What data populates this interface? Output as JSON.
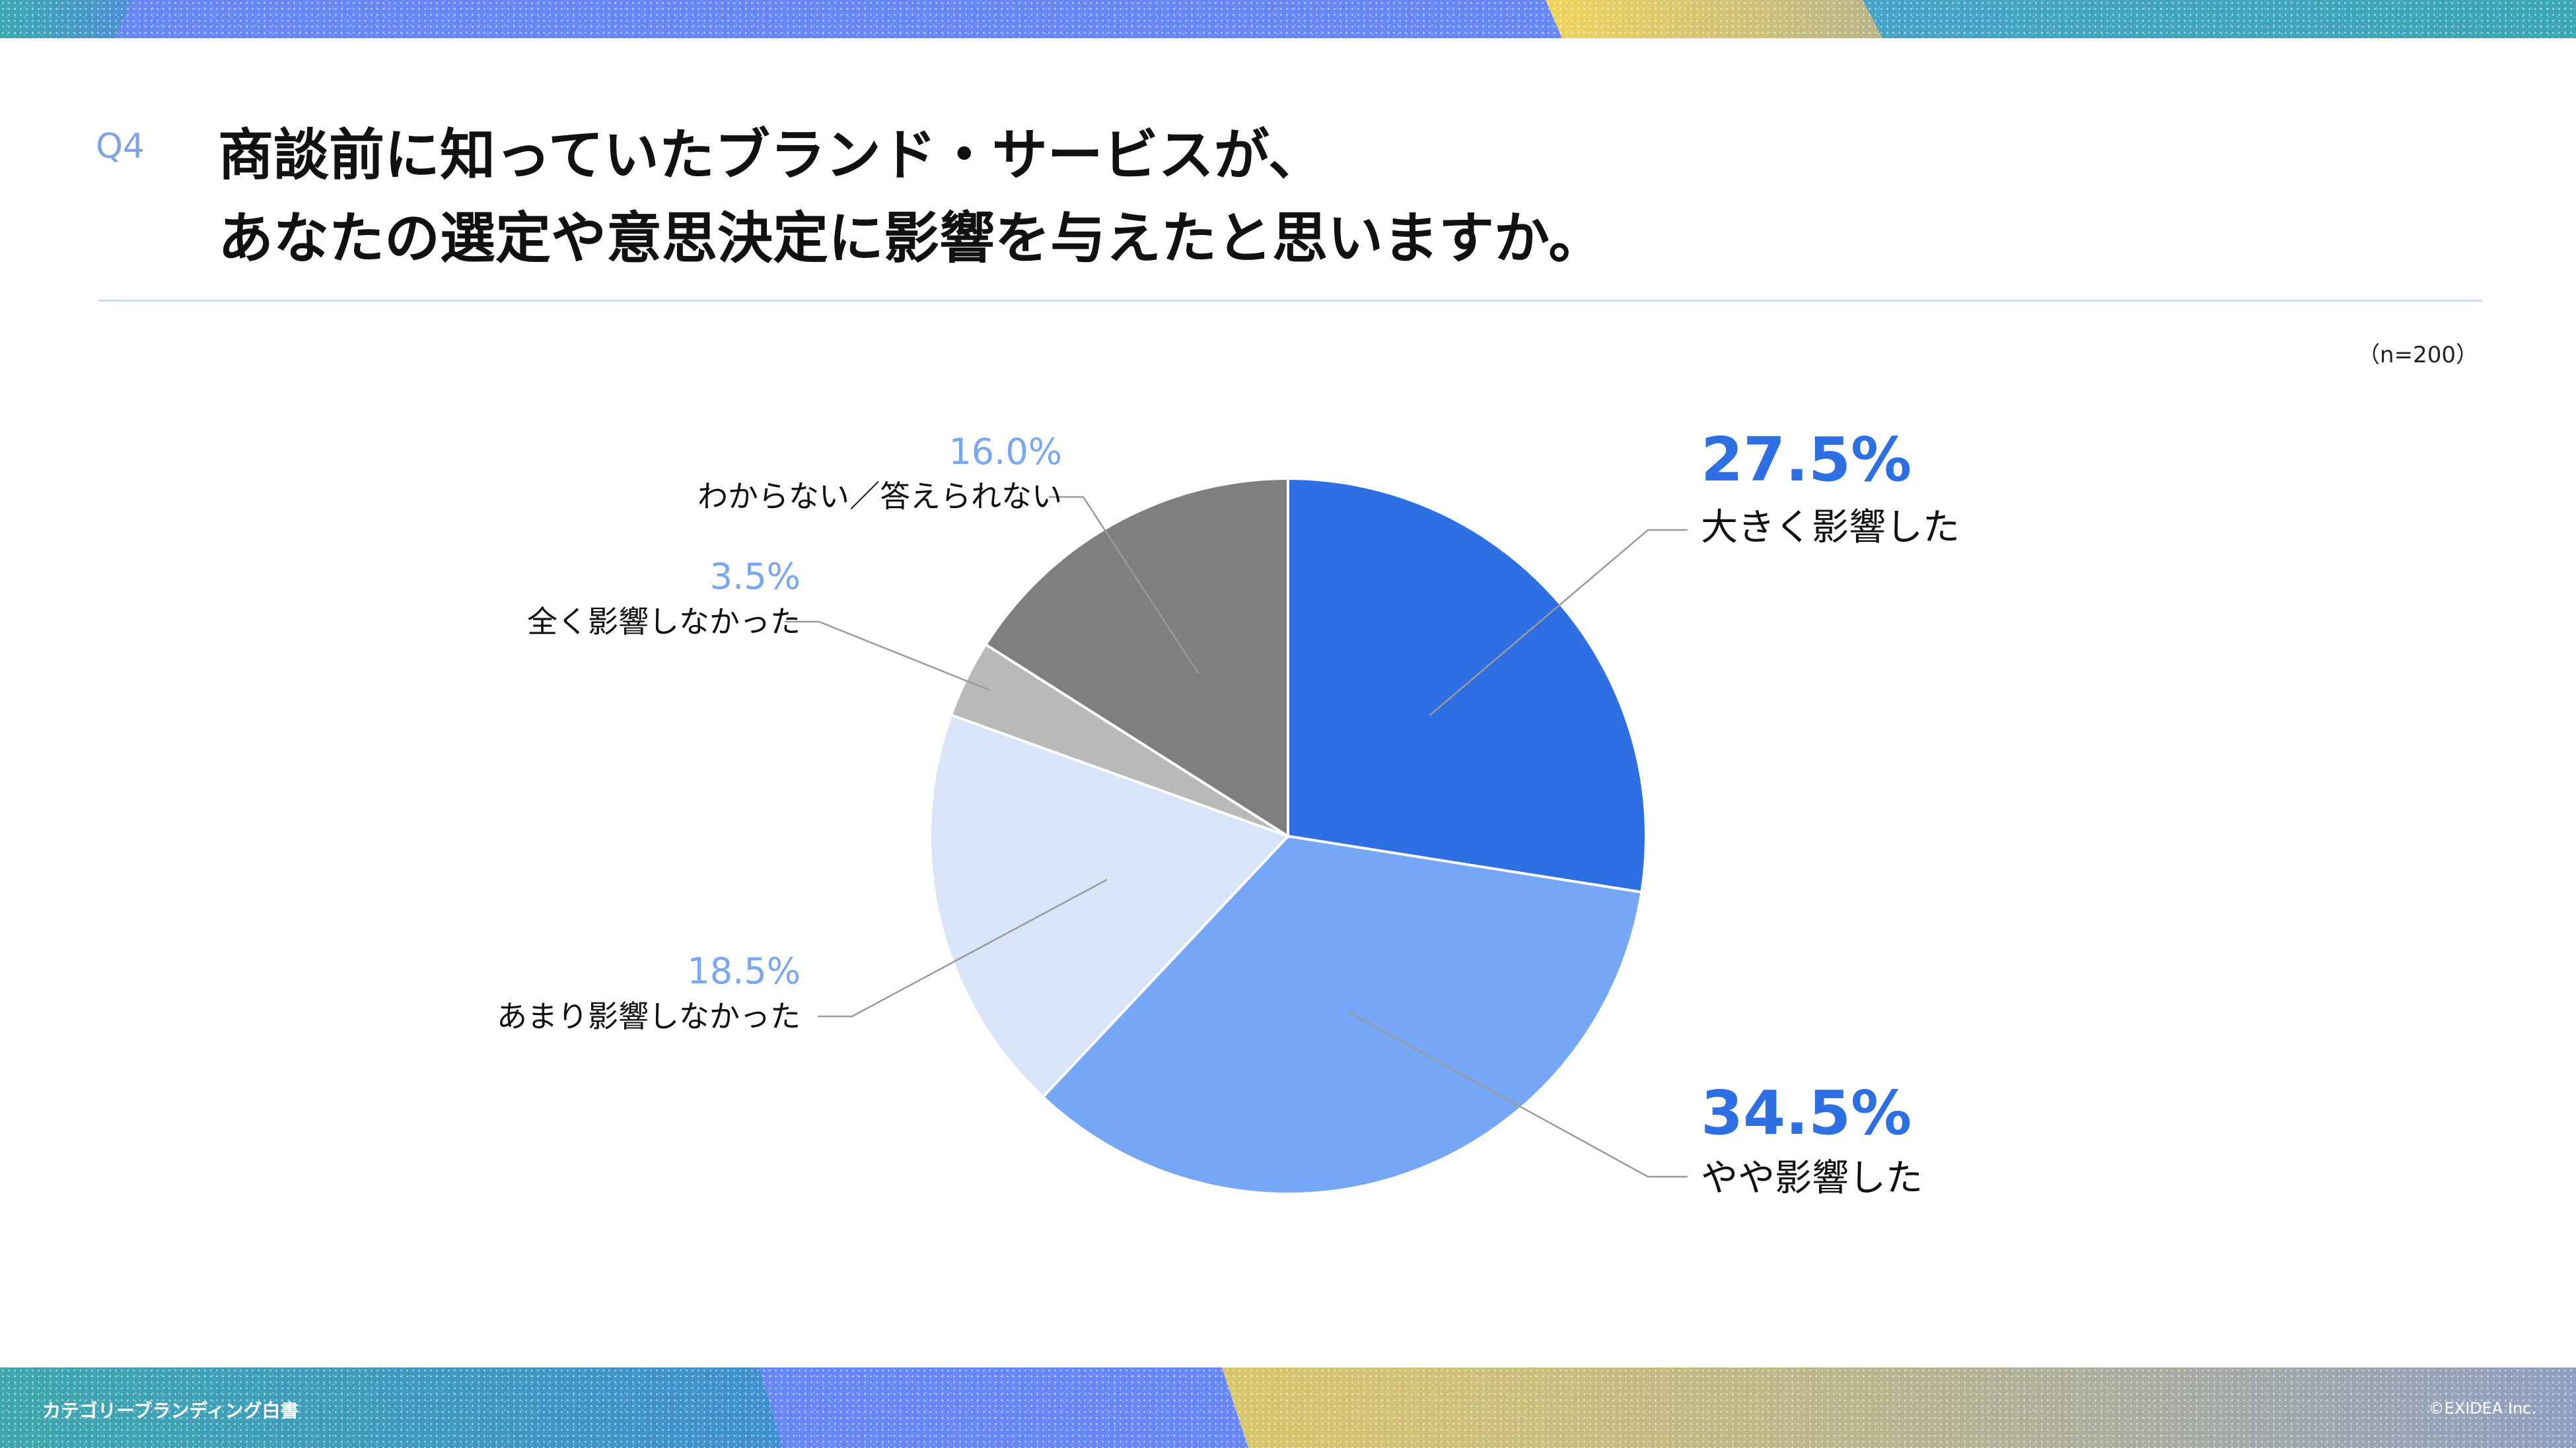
{
  "header": {
    "question_number": "Q4",
    "title_line1": "商談前に知っていたブランド・サービスが、",
    "title_line2": "あなたの選定や意思決定に影響を与えたと思いますか。",
    "sample_size": "（n=200）"
  },
  "footer": {
    "document_title": "カテゴリーブランディング白書",
    "copyright": "©EXIDEA Inc."
  },
  "colors": {
    "accent_blue": "#2e6fe4",
    "light_blue_text": "#7aa6f4",
    "band_blue": "#6687f5",
    "band_gold": "#e7cf5c",
    "band_teal": "#3fa6b8"
  },
  "chart_data": {
    "type": "pie",
    "start": "12 o'clock",
    "direction": "clockwise",
    "slices": [
      {
        "label": "大きく影響した",
        "value": 27.5,
        "value_label": "27.5%",
        "color": "#2e6fe4",
        "label_color": "#2e6fe4"
      },
      {
        "label": "やや影響した",
        "value": 34.5,
        "value_label": "34.5%",
        "color": "#76a6f6",
        "label_color": "#2e6fe4"
      },
      {
        "label": "あまり影響しなかった",
        "value": 18.5,
        "value_label": "18.5%",
        "color": "#d8e4f8",
        "label_color": "#7aa6f4"
      },
      {
        "label": "全く影響しなかった",
        "value": 3.5,
        "value_label": "3.5%",
        "color": "#b9b9b9",
        "label_color": "#7aa6f4"
      },
      {
        "label": "わからない／答えられない",
        "value": 16.0,
        "value_label": "16.0%",
        "color": "#7f7f7f",
        "label_color": "#7aa6f4"
      }
    ]
  }
}
